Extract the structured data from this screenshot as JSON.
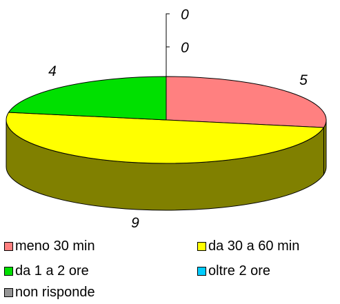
{
  "chart_data": {
    "type": "pie",
    "style": "3d",
    "categories": [
      "meno 30 min",
      "da 30 a 60 min",
      "da 1 a 2 ore",
      "oltre 2 ore",
      "non risponde"
    ],
    "values": [
      5,
      9,
      4,
      0,
      0
    ],
    "colors": {
      "meno 30 min": "#FF8080",
      "da 30 a 60 min": "#FFFF00",
      "da 1 a 2 ore": "#00E000",
      "oltre 2 ore": "#00CCFF",
      "non risponde": "#969696"
    },
    "side_colors": {
      "meno 30 min": "#808000",
      "da 30 a 60 min": "#808000",
      "da 1 a 2 ore": "#808000"
    },
    "data_labels": [
      "5",
      "9",
      "4",
      "0",
      "0"
    ],
    "legend": {
      "position": "bottom",
      "entries": [
        "meno 30 min",
        "da 30 a 60 min",
        "da 1 a 2 ore",
        "oltre 2 ore",
        "non risponde"
      ]
    },
    "title": ""
  }
}
